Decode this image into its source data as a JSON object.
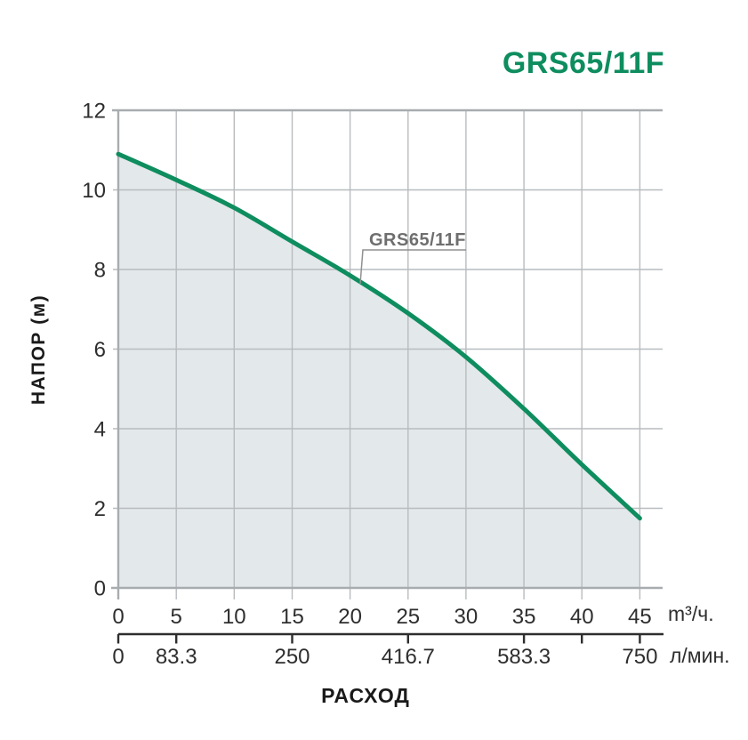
{
  "header": {
    "title": "GRS65/11F",
    "title_color": "#0e8d5f"
  },
  "colors": {
    "accent": "#0e8d5f",
    "area_fill": "#e3e8ea",
    "grid": "#b8bcbf",
    "plot_border": "#a8acaf",
    "secondary_axis": "#2d2d2d",
    "tick_text": "#2e2e2e",
    "annotation_text": "#6e6e6e",
    "annotation_line": "#909090"
  },
  "chart_data": {
    "type": "area",
    "title": "GRS65/11F",
    "xlabel": "РАСХОД",
    "ylabel": "НАПОР (м)",
    "x_unit_primary": "m³/ч.",
    "x_unit_secondary": "л/мин.",
    "xlim": [
      0,
      47
    ],
    "ylim": [
      0,
      12
    ],
    "grid": true,
    "y_ticks": [
      0,
      2,
      4,
      6,
      8,
      10,
      12
    ],
    "x_ticks_primary": [
      0,
      5,
      10,
      15,
      20,
      25,
      30,
      35,
      40,
      45
    ],
    "x_ticks_secondary": [
      {
        "label": "0",
        "at": 0
      },
      {
        "label": "83.3",
        "at": 5
      },
      {
        "label": "250",
        "at": 15
      },
      {
        "label": "416.7",
        "at": 25
      },
      {
        "label": "583.3",
        "at": 35
      },
      {
        "label": "",
        "at": 40
      },
      {
        "label": "750",
        "at": 45
      }
    ],
    "series": [
      {
        "name": "GRS65/11F",
        "x": [
          0,
          5,
          10,
          15,
          20,
          25,
          30,
          35,
          40,
          45
        ],
        "y": [
          10.9,
          10.25,
          9.55,
          8.7,
          7.85,
          6.9,
          5.8,
          4.5,
          3.1,
          1.75
        ]
      }
    ],
    "annotation": {
      "text": "GRS65/11F",
      "points_to_x": 21
    },
    "legend": "none"
  }
}
